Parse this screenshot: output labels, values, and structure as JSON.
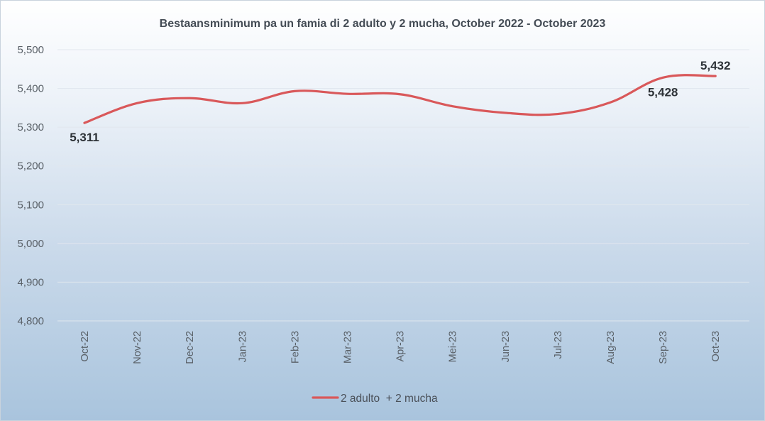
{
  "chart_data": {
    "type": "line",
    "title": "Bestaansminimum pa un famia di 2 adulto y 2 mucha, October 2022 - October 2023",
    "xlabel": "",
    "ylabel": "",
    "categories": [
      "Oct-22",
      "Nov-22",
      "Dec-22",
      "Jan-23",
      "Feb-23",
      "Mar-23",
      "Apr-23",
      "Mei-23",
      "Jun-23",
      "Jul-23",
      "Aug-23",
      "Sep-23",
      "Oct-23"
    ],
    "series": [
      {
        "name": "2 adulto  + 2 mucha",
        "color": "#d9585a",
        "values": [
          5311,
          5362,
          5375,
          5362,
          5393,
          5386,
          5385,
          5354,
          5337,
          5334,
          5364,
          5428,
          5432
        ]
      }
    ],
    "ylim": [
      4800,
      5500
    ],
    "yticks": [
      "4,800",
      "4,900",
      "5,000",
      "5,100",
      "5,200",
      "5,300",
      "5,400",
      "5,500"
    ],
    "ytick_values": [
      4800,
      4900,
      5000,
      5100,
      5200,
      5300,
      5400,
      5500
    ],
    "data_labels": [
      {
        "index": 0,
        "text": "5,311",
        "position": "below"
      },
      {
        "index": 11,
        "text": "5,428",
        "position": "below"
      },
      {
        "index": 12,
        "text": "5,432",
        "position": "above"
      }
    ],
    "grid": true,
    "legend": "bottom"
  }
}
